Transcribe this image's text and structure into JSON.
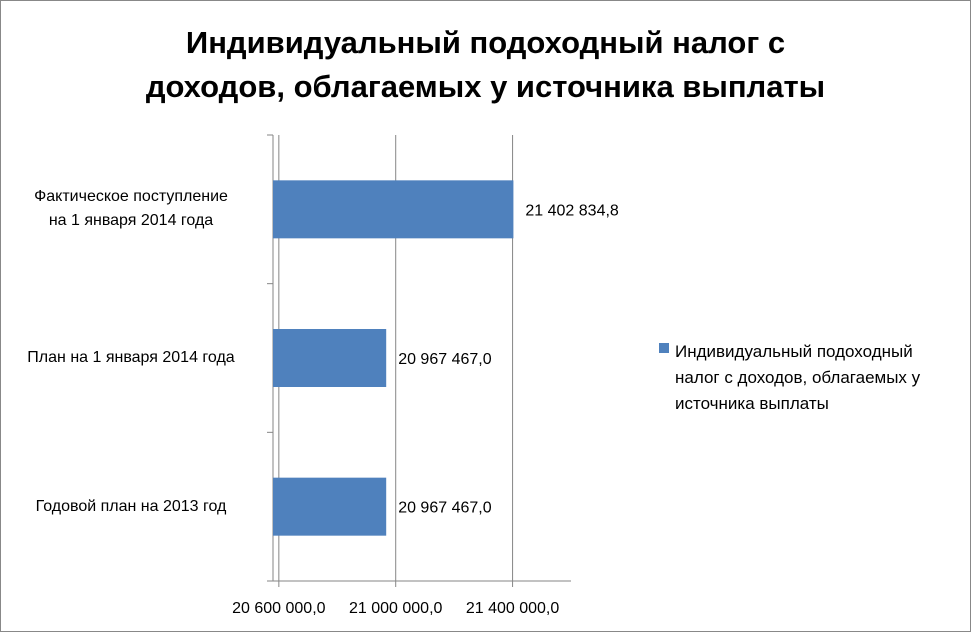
{
  "chart_data": {
    "type": "bar",
    "orientation": "horizontal",
    "title": "Индивидуальный подоходный налог с\nдоходов, облагаемых у источника выплаты",
    "categories": [
      "Фактическое поступление\nна  1 января   2014 года",
      "План на 1 января 2014 года",
      "Годовой  план на 2013  год"
    ],
    "series": [
      {
        "name": "Индивидуальный подоходный налог с доходов, облагаемых у источника выплаты",
        "color": "#4f81bd",
        "values": [
          21402834.8,
          20967467.0,
          20967467.0
        ],
        "value_labels": [
          "21 402 834,8",
          "20 967 467,0",
          "20 967 467,0"
        ]
      }
    ],
    "xlim": [
      20580000,
      21600000
    ],
    "xticks": [
      {
        "value": 20600000,
        "label": "20 600 000,0"
      },
      {
        "value": 21000000,
        "label": "21 000 000,0"
      },
      {
        "value": 21400000,
        "label": "21 400 000,0"
      }
    ],
    "grid": true,
    "legend": "right"
  }
}
